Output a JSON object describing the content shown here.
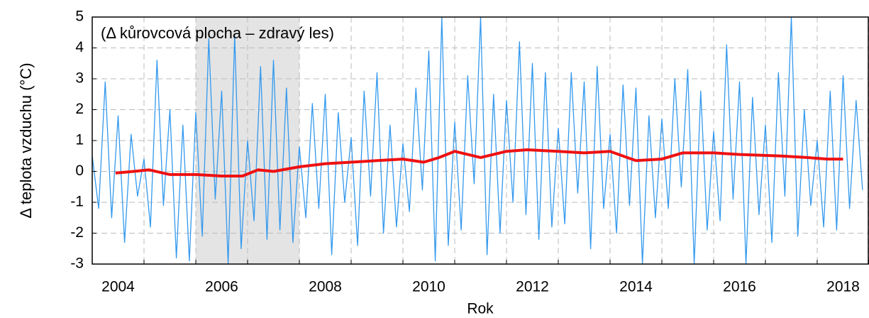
{
  "chart_data": {
    "type": "line",
    "ylabel": "Δ teplota vzduchu (°C)",
    "xlabel": "Rok",
    "annotation": "(Δ kůrovcová plocha – zdravý les)",
    "xlim": [
      2004,
      2019
    ],
    "ylim": [
      -3,
      5
    ],
    "yticks": [
      -3,
      -2,
      -1,
      0,
      1,
      2,
      3,
      4,
      5
    ],
    "xticks": [
      2004,
      2005,
      2006,
      2007,
      2008,
      2009,
      2010,
      2011,
      2012,
      2013,
      2014,
      2015,
      2016,
      2017,
      2018,
      2019
    ],
    "xtick_labels": [
      {
        "value": 2004.5,
        "label": "2004"
      },
      {
        "value": 2006.5,
        "label": "2006"
      },
      {
        "value": 2008.5,
        "label": "2008"
      },
      {
        "value": 2010.5,
        "label": "2010"
      },
      {
        "value": 2012.5,
        "label": "2012"
      },
      {
        "value": 2014.5,
        "label": "2014"
      },
      {
        "value": 2016.5,
        "label": "2016"
      },
      {
        "value": 2018.5,
        "label": "2018"
      }
    ],
    "grid": true,
    "shade": {
      "range": [
        2006,
        2008
      ],
      "color": "#e4e4e4"
    },
    "series": [
      {
        "color": "#3399ee",
        "x": [
          2004.0,
          2004.125,
          2004.25,
          2004.375,
          2004.5,
          2004.625,
          2004.75,
          2004.875,
          2005.0,
          2005.125,
          2005.25,
          2005.375,
          2005.5,
          2005.625,
          2005.75,
          2005.875,
          2006.0,
          2006.125,
          2006.25,
          2006.375,
          2006.5,
          2006.625,
          2006.75,
          2006.875,
          2007.0,
          2007.125,
          2007.25,
          2007.375,
          2007.5,
          2007.625,
          2007.75,
          2007.875,
          2008.0,
          2008.125,
          2008.25,
          2008.375,
          2008.5,
          2008.625,
          2008.75,
          2008.875,
          2009.0,
          2009.125,
          2009.25,
          2009.375,
          2009.5,
          2009.625,
          2009.75,
          2009.875,
          2010.0,
          2010.125,
          2010.25,
          2010.375,
          2010.5,
          2010.625,
          2010.75,
          2010.875,
          2011.0,
          2011.125,
          2011.25,
          2011.375,
          2011.5,
          2011.625,
          2011.75,
          2011.875,
          2012.0,
          2012.125,
          2012.25,
          2012.375,
          2012.5,
          2012.625,
          2012.75,
          2012.875,
          2013.0,
          2013.125,
          2013.25,
          2013.375,
          2013.5,
          2013.625,
          2013.75,
          2013.875,
          2014.0,
          2014.125,
          2014.25,
          2014.375,
          2014.5,
          2014.625,
          2014.75,
          2014.875,
          2015.0,
          2015.125,
          2015.25,
          2015.375,
          2015.5,
          2015.625,
          2015.75,
          2015.875,
          2016.0,
          2016.125,
          2016.25,
          2016.375,
          2016.5,
          2016.625,
          2016.75,
          2016.875,
          2017.0,
          2017.125,
          2017.25,
          2017.375,
          2017.5,
          2017.625,
          2017.75,
          2017.875,
          2018.0,
          2018.125,
          2018.25,
          2018.375,
          2018.5,
          2018.625,
          2018.75,
          2018.875
        ],
        "values": [
          0.5,
          -1.2,
          2.9,
          -1.5,
          1.8,
          -2.3,
          1.2,
          -0.8,
          0.4,
          -1.8,
          3.6,
          -1.1,
          2.0,
          -2.8,
          1.5,
          -2.9,
          1.9,
          -2.1,
          4.3,
          -0.9,
          2.6,
          -3.0,
          4.4,
          -2.5,
          1.0,
          -1.6,
          3.4,
          -2.2,
          3.6,
          -1.9,
          2.7,
          -2.3,
          0.8,
          -1.5,
          2.2,
          -1.2,
          2.5,
          -2.7,
          1.9,
          -1.0,
          1.1,
          -2.4,
          2.6,
          -0.8,
          3.2,
          -2.0,
          1.5,
          -1.8,
          0.9,
          -1.3,
          2.7,
          -0.6,
          3.9,
          -2.9,
          5.0,
          -2.4,
          1.6,
          -1.9,
          3.1,
          -0.4,
          5.0,
          -2.7,
          2.5,
          -2.0,
          2.3,
          -1.0,
          4.2,
          -1.4,
          3.5,
          -2.2,
          3.2,
          -1.8,
          1.4,
          -1.7,
          3.2,
          -0.7,
          2.9,
          -2.5,
          3.4,
          -1.2,
          1.2,
          -2.0,
          2.8,
          -1.1,
          2.7,
          -3.0,
          1.8,
          -1.5,
          1.7,
          -1.2,
          3.0,
          -0.5,
          3.3,
          -3.0,
          2.6,
          -1.9,
          1.3,
          -1.6,
          4.1,
          -0.9,
          2.9,
          -3.0,
          2.4,
          -1.4,
          1.5,
          -2.3,
          3.2,
          -0.8,
          5.0,
          -2.1,
          2.0,
          -1.1,
          1.0,
          -1.8,
          2.6,
          -1.9,
          3.1,
          -1.2,
          2.3,
          -0.6
        ]
      },
      {
        "color": "#ee1111",
        "x": [
          2004.45,
          2004.8,
          2005.1,
          2005.5,
          2006.0,
          2006.5,
          2006.9,
          2007.2,
          2007.5,
          2008.0,
          2008.5,
          2009.0,
          2009.5,
          2010.0,
          2010.4,
          2010.7,
          2011.0,
          2011.5,
          2012.0,
          2012.4,
          2013.0,
          2013.5,
          2014.0,
          2014.5,
          2015.0,
          2015.4,
          2016.0,
          2016.5,
          2017.3,
          2017.8,
          2018.2,
          2018.5
        ],
        "values": [
          -0.05,
          0.0,
          0.05,
          -0.1,
          -0.1,
          -0.15,
          -0.15,
          0.05,
          0.0,
          0.15,
          0.25,
          0.3,
          0.35,
          0.4,
          0.3,
          0.45,
          0.65,
          0.45,
          0.65,
          0.7,
          0.65,
          0.6,
          0.65,
          0.35,
          0.4,
          0.6,
          0.6,
          0.55,
          0.5,
          0.45,
          0.4,
          0.4
        ]
      }
    ]
  }
}
